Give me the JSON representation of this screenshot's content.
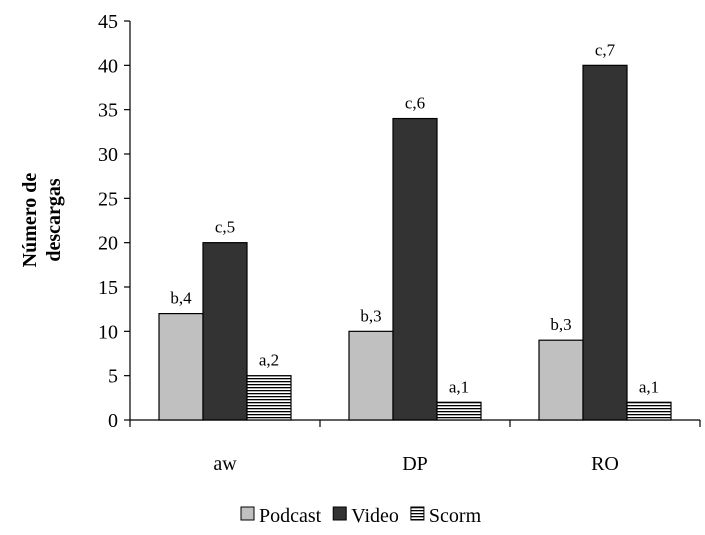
{
  "chart_data": {
    "type": "bar",
    "title": "",
    "xlabel": "",
    "ylabel": [
      "Número de",
      "descargas"
    ],
    "ylim": [
      0,
      45
    ],
    "yticks": [
      0,
      5,
      10,
      15,
      20,
      25,
      30,
      35,
      40,
      45
    ],
    "categories": [
      "aw",
      "DP",
      "RO"
    ],
    "series": [
      {
        "name": "Podcast",
        "values": [
          12,
          10,
          9
        ],
        "labels": [
          "b,4",
          "b,3",
          "b,3"
        ],
        "color": "#c0c0c0",
        "pattern": "solid"
      },
      {
        "name": "Video",
        "values": [
          20,
          34,
          40
        ],
        "labels": [
          "c,5",
          "c,6",
          "c,7"
        ],
        "color": "#333333",
        "pattern": "solid"
      },
      {
        "name": "Scorm",
        "values": [
          5,
          2,
          2
        ],
        "labels": [
          "a,2",
          "a,1",
          "a,1"
        ],
        "color": "#ffffff",
        "pattern": "horizontal-lines"
      }
    ],
    "legend": "bottom",
    "grid": false
  }
}
